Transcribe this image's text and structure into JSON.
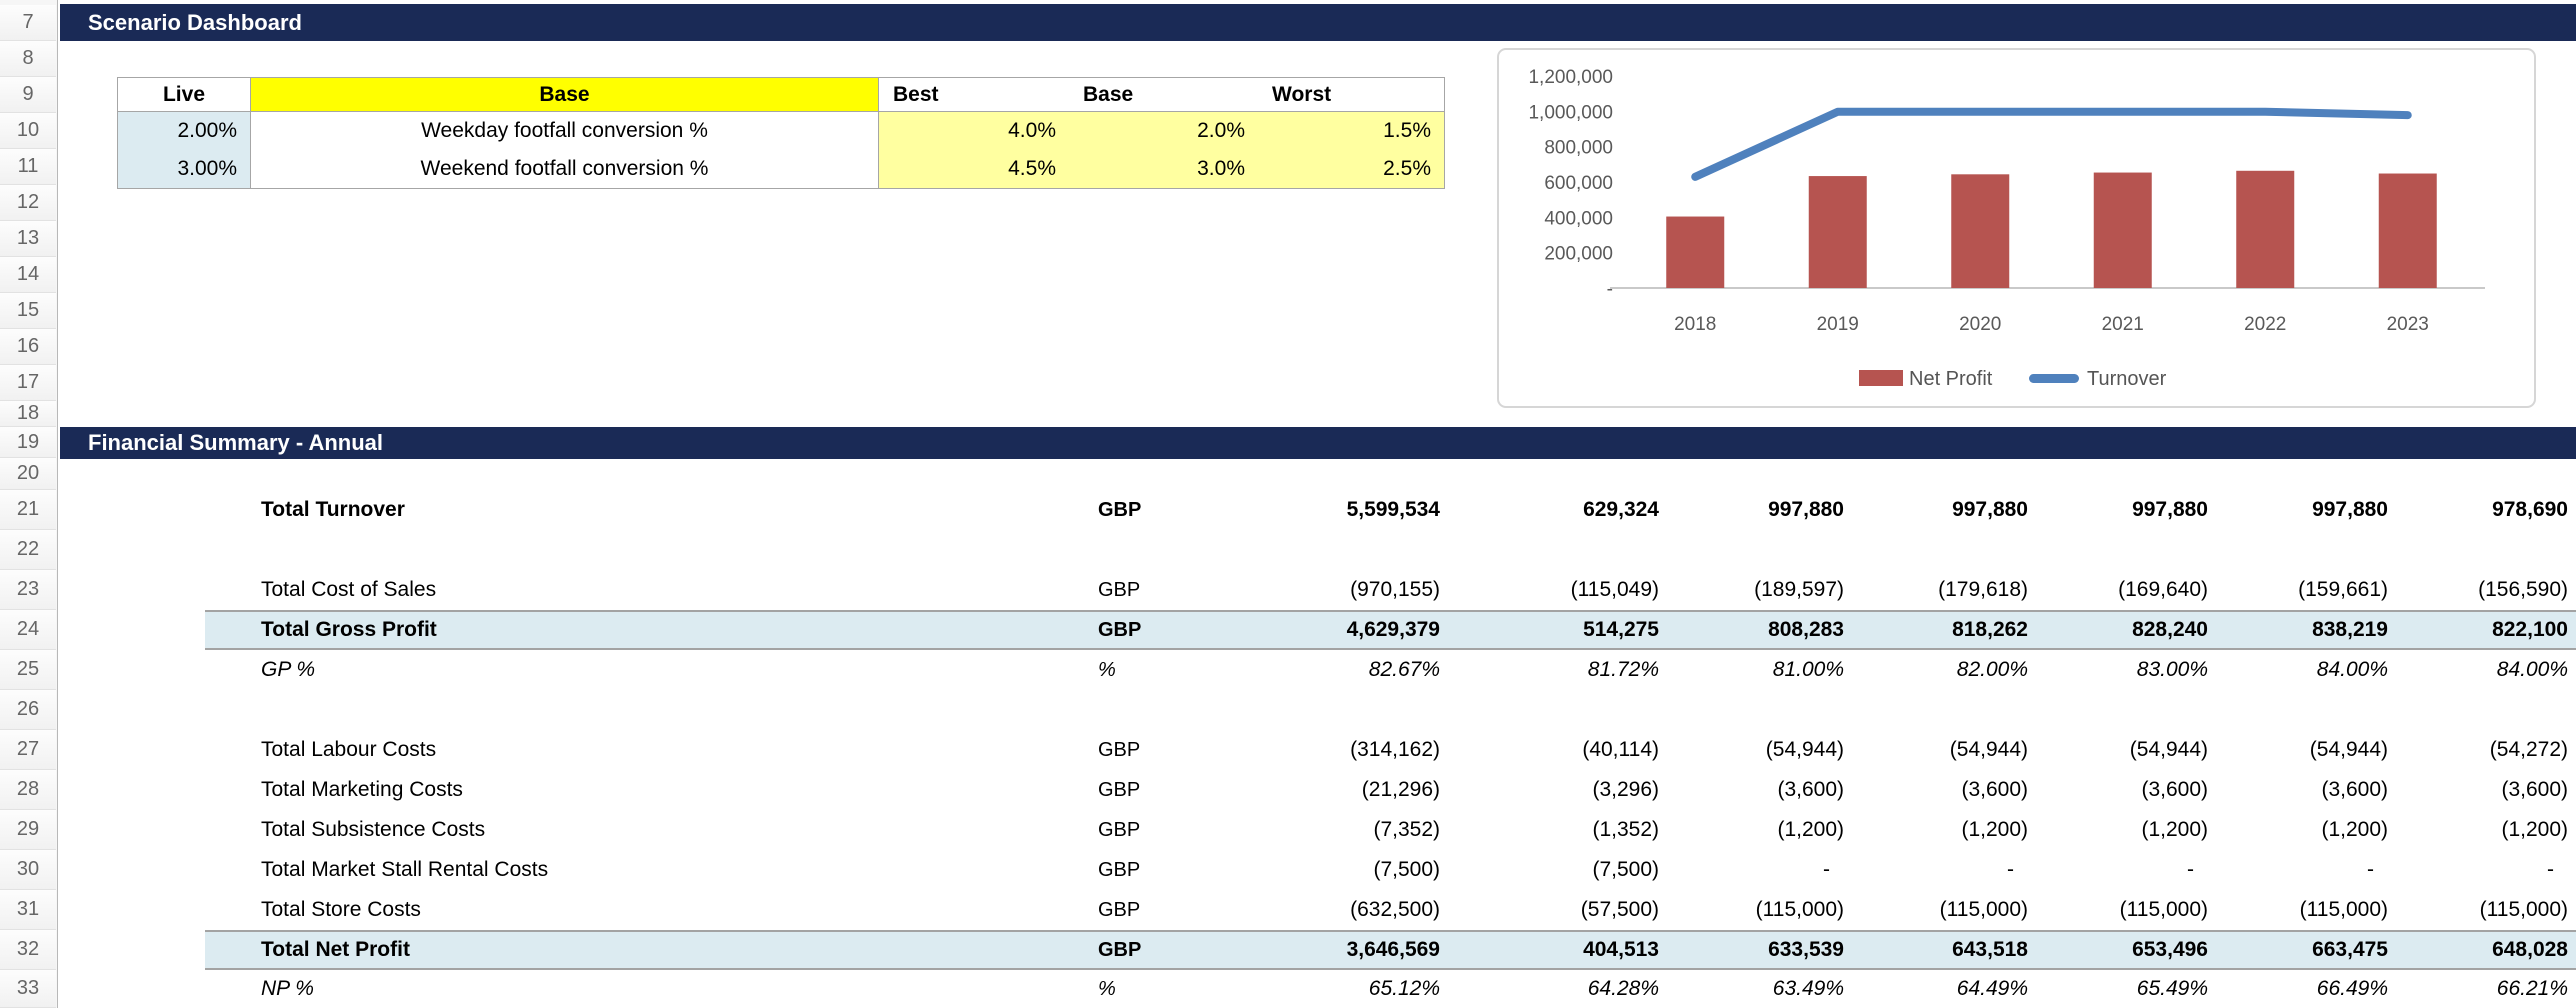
{
  "row_headers": {
    "numbers": [
      "7",
      "8",
      "9",
      "10",
      "11",
      "12",
      "13",
      "14",
      "15",
      "16",
      "17",
      "18",
      "19",
      "20",
      "21",
      "22",
      "23",
      "24",
      "25",
      "26",
      "27",
      "28",
      "29",
      "30",
      "31",
      "32",
      "33"
    ]
  },
  "scenario_dashboard": {
    "title": "Scenario Dashboard",
    "table": {
      "headers": {
        "live": "Live",
        "description": "Base",
        "best": "Best",
        "base": "Base",
        "worst": "Worst"
      },
      "rows": [
        {
          "live": "2.00%",
          "description": "Weekday footfall conversion %",
          "best": "4.0%",
          "base": "2.0%",
          "worst": "1.5%"
        },
        {
          "live": "3.00%",
          "description": "Weekend footfall conversion %",
          "best": "4.5%",
          "base": "3.0%",
          "worst": "2.5%"
        }
      ]
    },
    "colors": {
      "header_yellow": "#ffff00",
      "cell_yellow": "#ffffa0",
      "live_blue": "#dcebf1",
      "navy": "#1a2a56"
    }
  },
  "chart_data": {
    "type": "bar+line",
    "categories": [
      "2018",
      "2019",
      "2020",
      "2021",
      "2022",
      "2023"
    ],
    "series": [
      {
        "name": "Net Profit",
        "type": "bar",
        "color": "#b65450",
        "values": [
          404513,
          633539,
          643518,
          653496,
          663475,
          648028
        ]
      },
      {
        "name": "Turnover",
        "type": "line",
        "color": "#4f81bd",
        "values": [
          629324,
          997880,
          997880,
          997880,
          997880,
          978690
        ]
      }
    ],
    "ylim": [
      0,
      1200000
    ],
    "ytick_step": 200000,
    "ytick_labels": [
      "-",
      "200,000",
      "400,000",
      "600,000",
      "800,000",
      "1,000,000",
      "1,200,000"
    ],
    "legend_position": "bottom",
    "grid": false
  },
  "financial_summary": {
    "title": "Financial Summary - Annual",
    "rows": [
      {
        "row": 21,
        "label": "Total Turnover",
        "unit": "GBP",
        "style": "bold",
        "values": [
          "5,599,534",
          "629,324",
          "997,880",
          "997,880",
          "997,880",
          "997,880",
          "978,690"
        ]
      },
      {
        "row": 23,
        "label": "Total Cost of Sales",
        "unit": "GBP",
        "style": "normal",
        "values": [
          "(970,155)",
          "(115,049)",
          "(189,597)",
          "(179,618)",
          "(169,640)",
          "(159,661)",
          "(156,590)"
        ]
      },
      {
        "row": 24,
        "label": "Total Gross Profit",
        "unit": "GBP",
        "style": "total",
        "values": [
          "4,629,379",
          "514,275",
          "808,283",
          "818,262",
          "828,240",
          "838,219",
          "822,100"
        ]
      },
      {
        "row": 25,
        "label": "GP %",
        "unit": "%",
        "style": "percent",
        "values": [
          "82.67%",
          "81.72%",
          "81.00%",
          "82.00%",
          "83.00%",
          "84.00%",
          "84.00%"
        ]
      },
      {
        "row": 27,
        "label": "Total Labour Costs",
        "unit": "GBP",
        "style": "normal",
        "values": [
          "(314,162)",
          "(40,114)",
          "(54,944)",
          "(54,944)",
          "(54,944)",
          "(54,944)",
          "(54,272)"
        ]
      },
      {
        "row": 28,
        "label": "Total Marketing Costs",
        "unit": "GBP",
        "style": "normal",
        "values": [
          "(21,296)",
          "(3,296)",
          "(3,600)",
          "(3,600)",
          "(3,600)",
          "(3,600)",
          "(3,600)"
        ]
      },
      {
        "row": 29,
        "label": "Total Subsistence Costs",
        "unit": "GBP",
        "style": "normal",
        "values": [
          "(7,352)",
          "(1,352)",
          "(1,200)",
          "(1,200)",
          "(1,200)",
          "(1,200)",
          "(1,200)"
        ]
      },
      {
        "row": 30,
        "label": "Total Market Stall Rental Costs",
        "unit": "GBP",
        "style": "normal",
        "values": [
          "(7,500)",
          "(7,500)",
          "-",
          "-",
          "-",
          "-",
          "-"
        ]
      },
      {
        "row": 31,
        "label": "Total Store Costs",
        "unit": "GBP",
        "style": "normal",
        "values": [
          "(632,500)",
          "(57,500)",
          "(115,000)",
          "(115,000)",
          "(115,000)",
          "(115,000)",
          "(115,000)"
        ]
      },
      {
        "row": 32,
        "label": "Total Net Profit",
        "unit": "GBP",
        "style": "total",
        "values": [
          "3,646,569",
          "404,513",
          "633,539",
          "643,518",
          "653,496",
          "663,475",
          "648,028"
        ]
      },
      {
        "row": 33,
        "label": "NP %",
        "unit": "%",
        "style": "percent",
        "values": [
          "65.12%",
          "64.28%",
          "63.49%",
          "64.49%",
          "65.49%",
          "66.49%",
          "66.21%"
        ]
      }
    ]
  }
}
